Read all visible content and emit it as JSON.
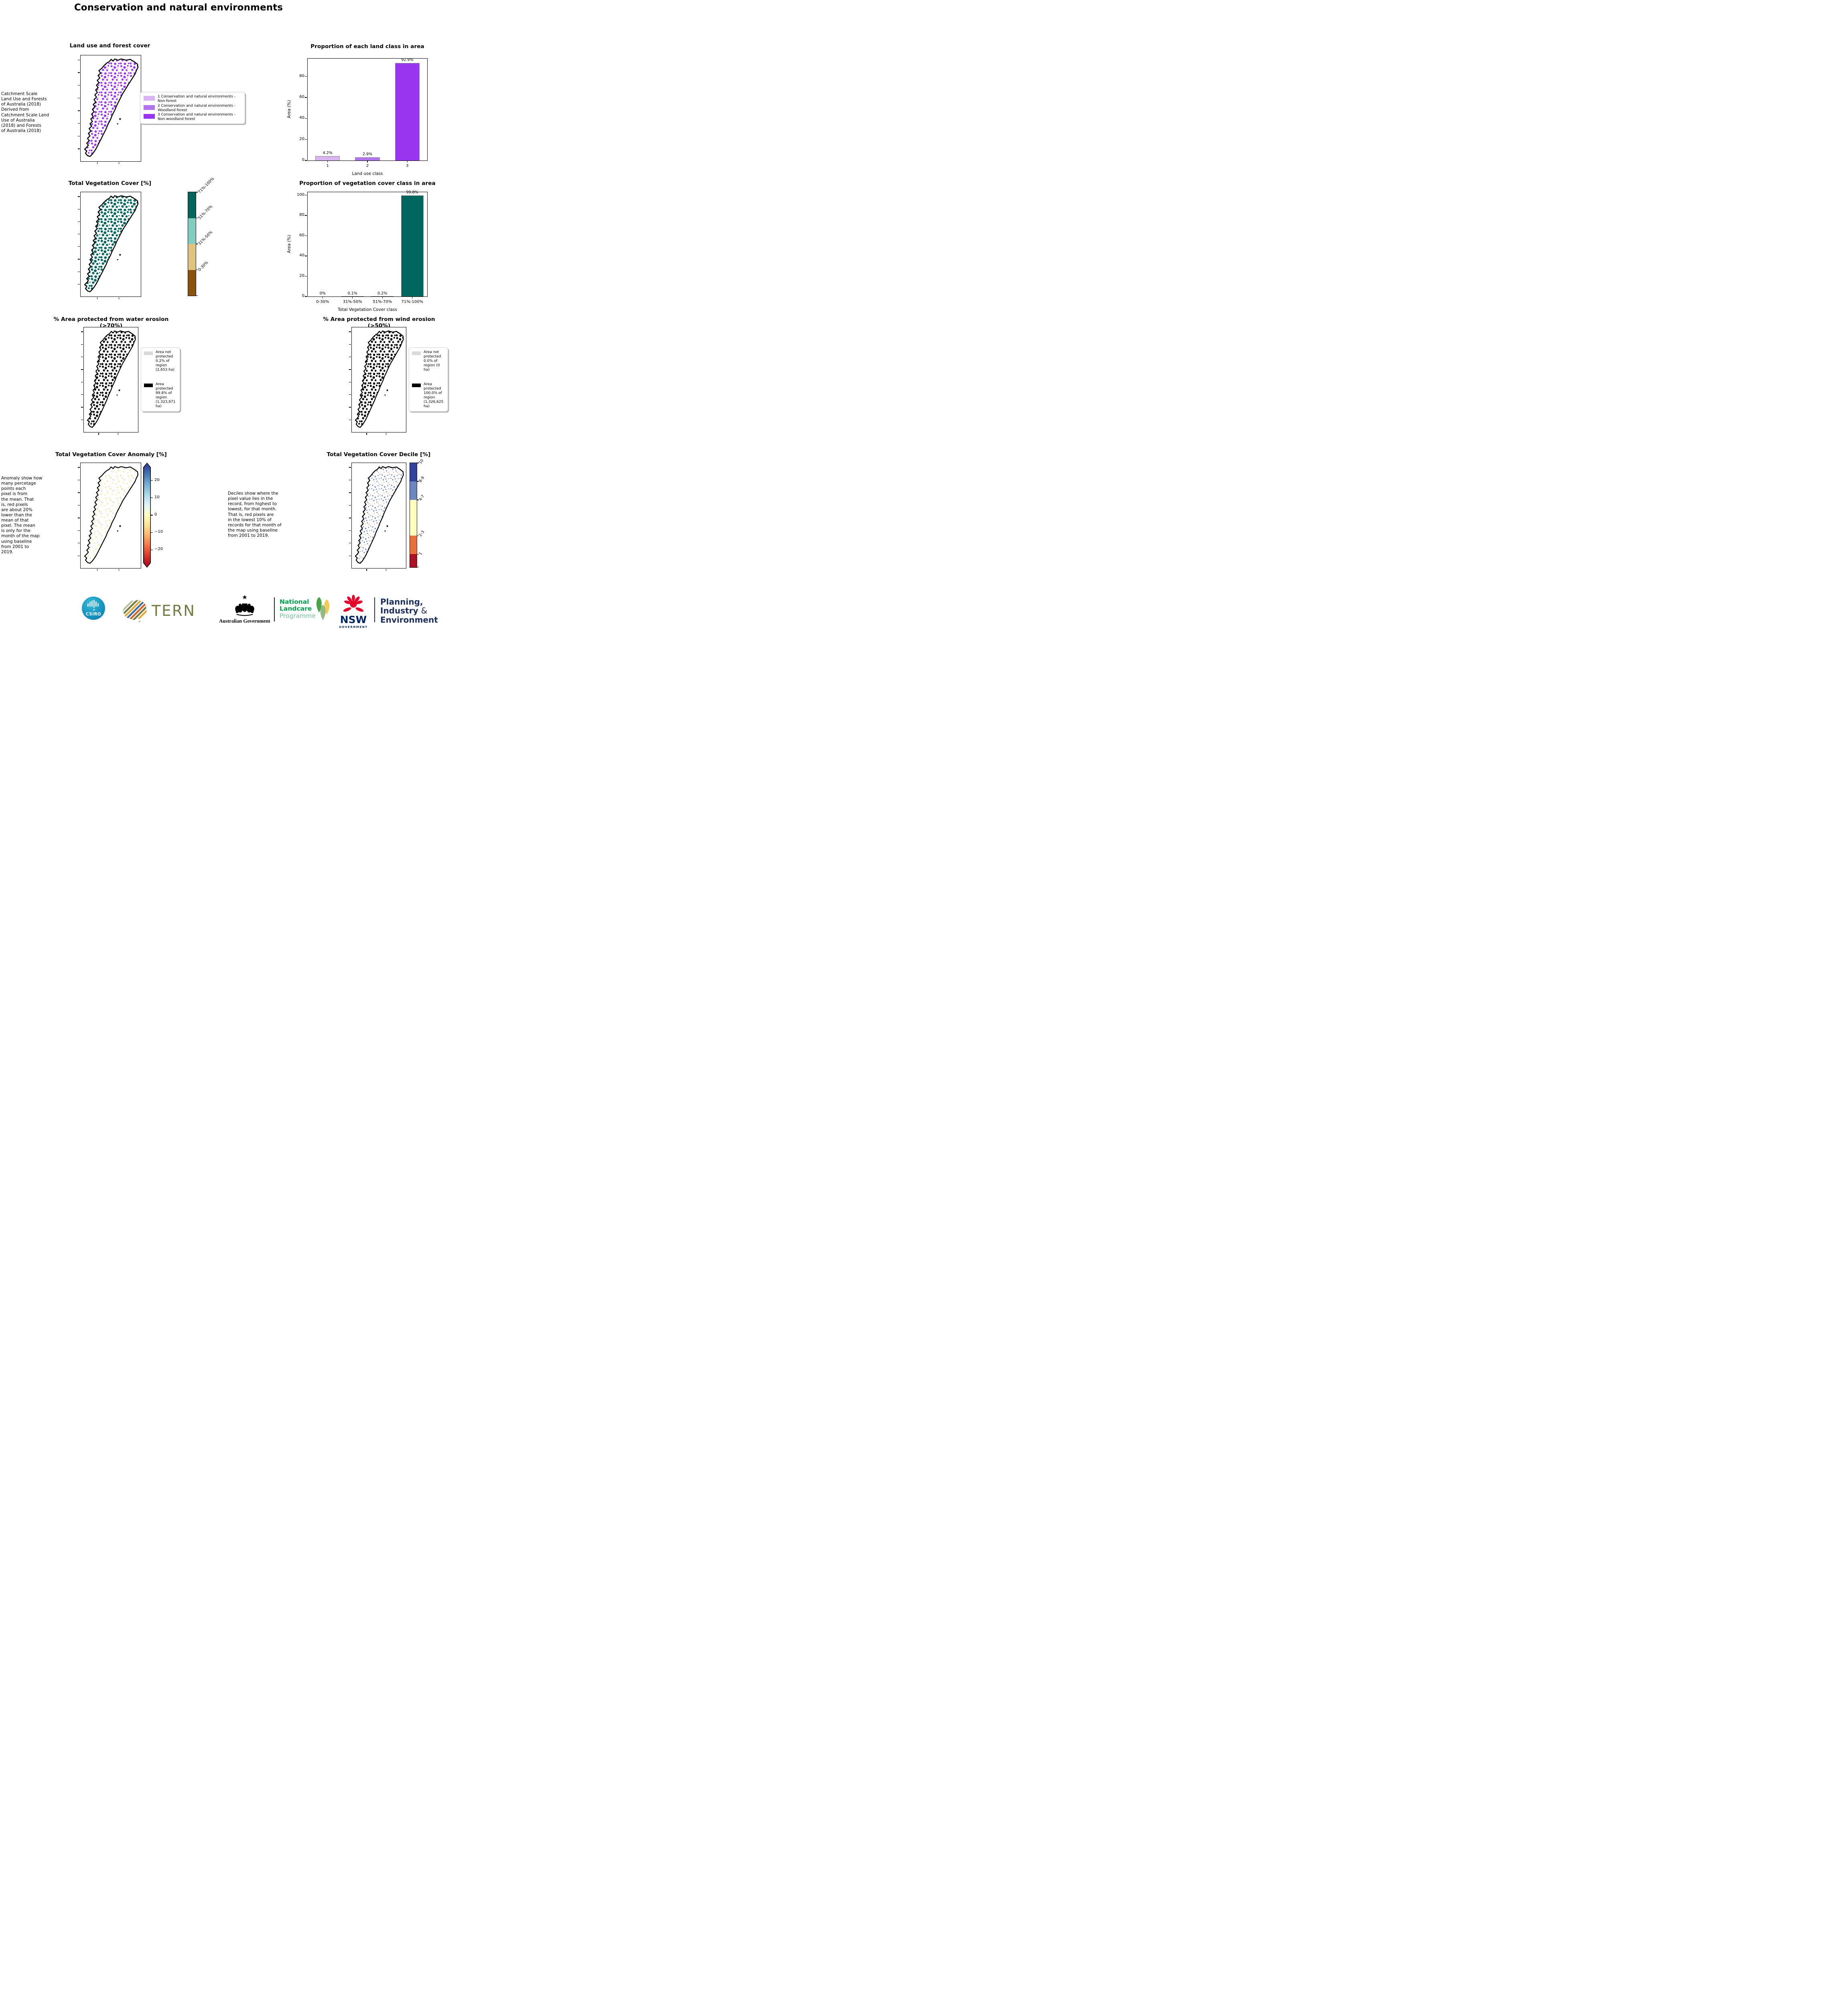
{
  "page_title": "Conservation and natural environments",
  "panels": {
    "land_use": {
      "caption": " Catchment Scale\nLand Use and Forests\nof Australia (2018)\nDerived from\nCatchment Scale Land\nUse of Australia\n(2018) and Forests\nof Australia (2018)",
      "map_title": "Land use and forest cover",
      "legend": [
        {
          "label": "1 Conservation and natural environments - Non-forest",
          "color": "#d9b3f2"
        },
        {
          "label": "2 Conservation and natural environments - Woodland forest",
          "color": "#b273ee"
        },
        {
          "label": "3 Conservation and natural environments - Non-woodland forest",
          "color": "#9a35ef"
        }
      ]
    },
    "veg_cover": {
      "map_title": "Total Vegetation Cover [%]"
    },
    "water_erosion": {
      "map_title": "% Area protected from water erosion (>70%)",
      "legend": [
        {
          "label": "Area not\nprotected\n0.2% of\nregion\n(2,653 ha)",
          "color": "#d9d9d9"
        },
        {
          "label": "Area\nprotected\n99.8% of\nregion\n(1,323,971\nha)",
          "color": "#000000"
        }
      ]
    },
    "wind_erosion": {
      "map_title": "% Area protected from wind erosion (>50%)",
      "legend": [
        {
          "label": "Area not\nprotected\n0.0% of\nregion (0\nha)",
          "color": "#d9d9d9"
        },
        {
          "label": "Area\nprotected\n100.0% of\nregion\n(1,326,625\nha)",
          "color": "#000000"
        }
      ]
    },
    "anomaly": {
      "map_title": "Total Vegetation Cover Anomaly [%]",
      "caption": "Anomaly show how\nmany percetage\npoints each\npixel is from\nthe mean. That\nis, red pixels\nare about 20%\nlower than the\nmean of that\npixel. The mean\nis only for the\nmonth of the map\nusing baseline\nfrom 2001 to\n2019."
    },
    "decile": {
      "map_title": "Total Vegetation Cover Decile [%]",
      "caption": "Deciles show where the\npixel value lies in the\nrecord, from highest to\nlowest, for that month.\nThat is, red pixels are\nin the lowest 10% of\nrecords for that month of\nthe map using baseline\nfrom 2001 to 2019."
    }
  },
  "chart_data": [
    {
      "id": "land-class",
      "type": "bar",
      "title": "Proportion of each land class in area",
      "xlabel": "Land use class",
      "ylabel": "Area (%)",
      "categories": [
        "1",
        "2",
        "3"
      ],
      "values": [
        4.2,
        2.9,
        92.9
      ],
      "value_labels": [
        "4.2%",
        "2.9%",
        "92.9%"
      ],
      "colors": [
        "#d9b3f2",
        "#b273ee",
        "#9a35ef"
      ],
      "ylim": [
        0,
        97
      ],
      "yticks": [
        0,
        20,
        40,
        60,
        80
      ],
      "bar_frac": 0.62,
      "grid": false,
      "legend_position": "none"
    },
    {
      "id": "veg-class",
      "type": "bar",
      "title": "Proportion of vegetation cover class in area",
      "xlabel": "Total Vegetation Cover class",
      "ylabel": "Area (%)",
      "categories": [
        "0-30%",
        "31%-50%",
        "51%-70%",
        "71%-100%"
      ],
      "values": [
        0,
        0.1,
        0.2,
        99.8
      ],
      "value_labels": [
        "0%",
        "0.1%",
        "0.2%",
        "99.8%"
      ],
      "colors": [
        "#01665e",
        "#01665e",
        "#01665e",
        "#01665e"
      ],
      "ylim": [
        0,
        103
      ],
      "yticks": [
        0,
        20,
        40,
        60,
        80,
        100
      ],
      "bar_frac": 0.75,
      "grid": false,
      "legend_position": "none"
    }
  ],
  "colorbars": {
    "veg_cover": {
      "rot": -45,
      "segments": [
        {
          "label": "71%-100%",
          "color": "#01665e",
          "h": 25
        },
        {
          "label": "51%-70%",
          "color": "#80cdc1",
          "h": 25
        },
        {
          "label": "31%-50%",
          "color": "#dfc27d",
          "h": 25
        },
        {
          "label": "0-30%",
          "color": "#8c510a",
          "h": 25
        }
      ]
    },
    "anomaly": {
      "stops": [
        "#313695",
        "#4575b4",
        "#74add1",
        "#abd9e9",
        "#e0f3f8",
        "#ffffbf",
        "#fee090",
        "#fdae61",
        "#f46d43",
        "#d73027",
        "#a50026"
      ],
      "ticks": [
        {
          "label": "20",
          "pos": 17
        },
        {
          "label": "10",
          "pos": 33.5
        },
        {
          "label": "0",
          "pos": 50
        },
        {
          "label": "−10",
          "pos": 66.5
        },
        {
          "label": "−20",
          "pos": 83
        }
      ]
    },
    "decile": {
      "rot": -55,
      "segments": [
        {
          "label": "10",
          "color": "#33429a",
          "h": 17.7
        },
        {
          "label": "8-9",
          "color": "#6d86c0",
          "h": 17.7
        },
        {
          "label": "4-7",
          "color": "#ffffbf",
          "h": 34.3
        },
        {
          "label": "2-3",
          "color": "#e8703d",
          "h": 17.7
        },
        {
          "label": "1",
          "color": "#aa1026",
          "h": 12.6
        }
      ]
    }
  },
  "map_colors": {
    "landuse_speckle": "#9a35ef",
    "landuse_light": "#d9b3f2",
    "veg_speckle": "#01665e",
    "erosion_speckle": "#000000",
    "outline": "#000000"
  },
  "footer": {
    "csiro": "CSIRO",
    "tern": "TERN",
    "aus_gov": "Australian Government",
    "landcare_1": "National",
    "landcare_2": "Landcare",
    "landcare_3": "Programme",
    "nsw": "NSW",
    "nsw_sub": "GOVERNMENT",
    "pie_1": "Planning,",
    "pie_2a": "Industry",
    "pie_2b": "&",
    "pie_3": "Environment",
    "colors": {
      "csiro_teal": "#0e9ec6",
      "tern_olive": "#6f7b41",
      "landcare_green": "#00a04a",
      "landcare_light": "#6cc29a",
      "nsw_red": "#e4002b",
      "nsw_navy": "#002664",
      "pie_navy": "#1c2e5c"
    }
  }
}
